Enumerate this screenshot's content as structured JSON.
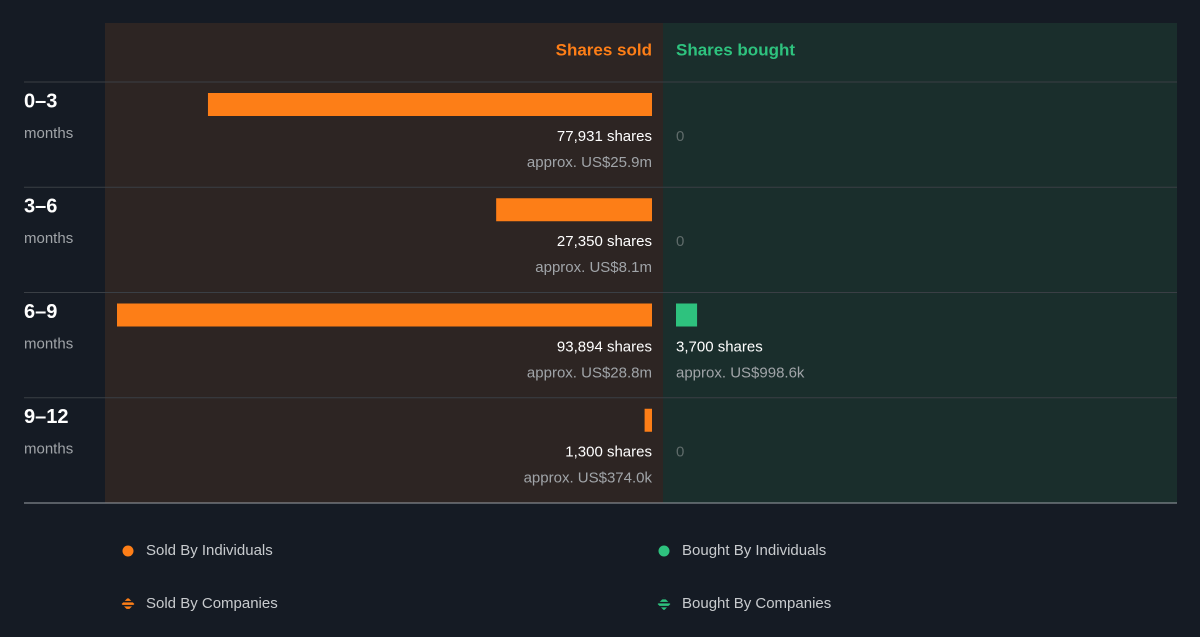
{
  "chart_data": {
    "type": "bar",
    "orientation": "diverging",
    "categories": [
      "0–3",
      "3–6",
      "6–9",
      "9–12"
    ],
    "category_unit": "months",
    "series": [
      {
        "name": "Shares sold",
        "color": "#fd7e17",
        "panel_color": "#2d2523",
        "values": [
          77931,
          27350,
          93894,
          1300
        ],
        "value_labels": [
          "77,931 shares",
          "27,350 shares",
          "93,894 shares",
          "1,300 shares"
        ],
        "approx_labels": [
          "approx. US$25.9m",
          "approx. US$8.1m",
          "approx. US$28.8m",
          "approx. US$374.0k"
        ]
      },
      {
        "name": "Shares bought",
        "color": "#2ec27e",
        "panel_color": "#1a2e2c",
        "values": [
          0,
          0,
          3700,
          0
        ],
        "value_labels": [
          "0",
          "0",
          "3,700 shares",
          "0"
        ],
        "approx_labels": [
          null,
          null,
          "approx. US$998.6k",
          null
        ]
      }
    ],
    "legend": [
      {
        "name": "Sold By Individuals",
        "color": "#fd7e17",
        "pattern": "solid"
      },
      {
        "name": "Sold By Companies",
        "color": "#fd7e17",
        "pattern": "striped"
      },
      {
        "name": "Bought By Individuals",
        "color": "#2ec27e",
        "pattern": "solid"
      },
      {
        "name": "Bought By Companies",
        "color": "#2ec27e",
        "pattern": "striped"
      }
    ]
  }
}
